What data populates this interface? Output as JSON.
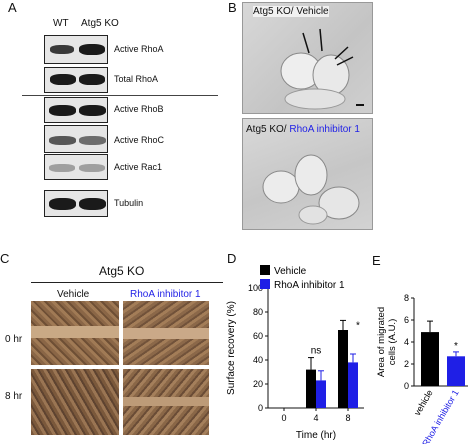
{
  "panels": {
    "a": "A",
    "b": "B",
    "c": "C",
    "d": "D",
    "e": "E"
  },
  "panelA": {
    "lanes": [
      "WT",
      "Atg5 KO"
    ],
    "blots": [
      "Active RhoA",
      "Total RhoA",
      "Active RhoB",
      "Active RhoC",
      "Active Rac1",
      "Tubulin"
    ]
  },
  "panelB": {
    "top_title": "Atg5 KO/ Vehicle",
    "bottom_title_prefix": "Atg5 KO/ ",
    "bottom_title_drug": "RhoA inhibitor 1"
  },
  "panelC": {
    "header": "Atg5 KO",
    "columns": [
      "Vehicle",
      "RhoA inhibitor 1"
    ],
    "rows": [
      "0 hr",
      "8 hr"
    ]
  },
  "chart_data": [
    {
      "type": "bar",
      "panel": "D",
      "xlabel": "Time (hr)",
      "ylabel": "Surface recovery (%)",
      "ylim": [
        0,
        100
      ],
      "yticks": [
        "0",
        "20",
        "40",
        "60",
        "80",
        "100"
      ],
      "categories": [
        "0",
        "4",
        "8"
      ],
      "series": [
        {
          "name": "Vehicle",
          "color": "#000000",
          "values": [
            0,
            32,
            65
          ],
          "errors": [
            0,
            10,
            8
          ]
        },
        {
          "name": "RhoA inhibitor 1",
          "color": "#1f1fe6",
          "values": [
            0,
            23,
            38
          ],
          "errors": [
            0,
            8,
            7
          ]
        }
      ],
      "annotations": [
        {
          "category": "4",
          "text": "ns"
        },
        {
          "category": "8",
          "text": "*"
        }
      ],
      "legend": "top-left"
    },
    {
      "type": "bar",
      "panel": "E",
      "ylabel": "Area of migrated cells (A.U.)",
      "ylim": [
        0,
        8
      ],
      "yticks": [
        "0",
        "2",
        "4",
        "6",
        "8"
      ],
      "categories": [
        "vehicle",
        "RhoA inhibitor 1"
      ],
      "category_colors": [
        "#000000",
        "#1f1fe6"
      ],
      "values": [
        4.9,
        2.7
      ],
      "errors": [
        1.0,
        0.4
      ],
      "annotations": [
        {
          "category": "RhoA inhibitor 1",
          "text": "*"
        }
      ]
    }
  ]
}
